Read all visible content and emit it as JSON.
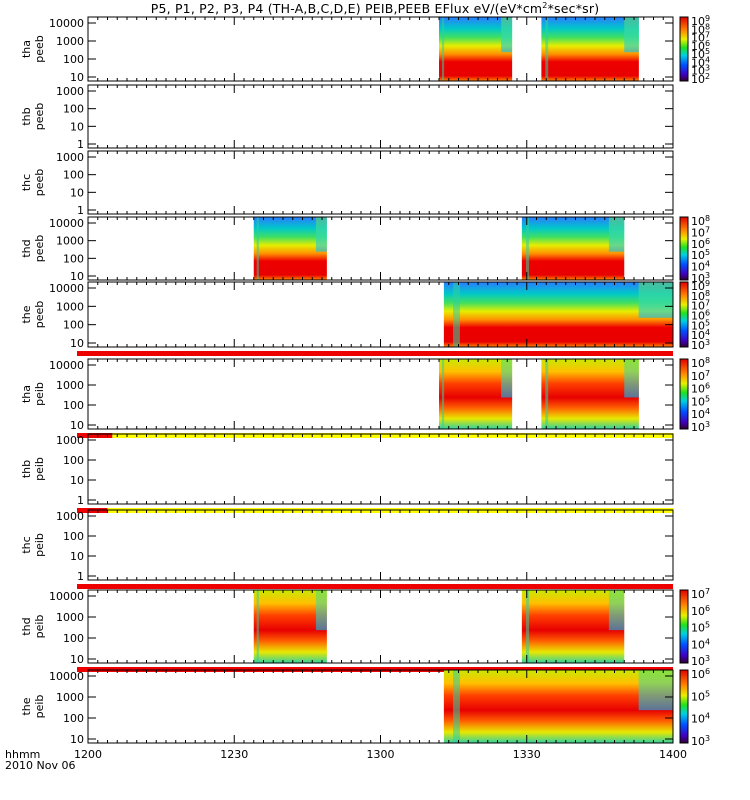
{
  "title": {
    "pre": "P5, P1, P2, P3, P4 (TH-A,B,C,D,E) PEIB,PEEB EFlux eV/(eV*cm",
    "sup": "2",
    "post": "*sec*sr)"
  },
  "xaxis": {
    "label": "hhmm",
    "date": "2010 Nov 06",
    "ticks": [
      "1200",
      "1230",
      "1300",
      "1330",
      "1400"
    ],
    "range_minutes": [
      0,
      120
    ]
  },
  "chart_data": [
    {
      "type": "heatmap",
      "label": [
        "tha",
        "peeb"
      ],
      "yticks": [
        "10000",
        "1000",
        "100",
        "10"
      ],
      "colorbar": [
        "10^9",
        "10^8",
        "10^7",
        "10^6",
        "10^5",
        "10^4",
        "10^3",
        "10^2"
      ],
      "intervals_min": [
        [
          72,
          87
        ],
        [
          93,
          113
        ]
      ],
      "status_bar": null
    },
    {
      "type": "heatmap",
      "label": [
        "thb",
        "peeb"
      ],
      "yticks": [
        "1000",
        "100",
        "10",
        "1"
      ],
      "colorbar": null,
      "intervals_min": [],
      "status_bar": null
    },
    {
      "type": "heatmap",
      "label": [
        "thc",
        "peeb"
      ],
      "yticks": [
        "1000",
        "100",
        "10",
        "1"
      ],
      "colorbar": null,
      "intervals_min": [],
      "status_bar": null
    },
    {
      "type": "heatmap",
      "label": [
        "thd",
        "peeb"
      ],
      "yticks": [
        "10000",
        "1000",
        "100",
        "10"
      ],
      "colorbar": [
        "10^8",
        "10^7",
        "10^6",
        "10^5",
        "10^4",
        "10^3"
      ],
      "intervals_min": [
        [
          34,
          49
        ],
        [
          89,
          110
        ]
      ],
      "status_bar": null
    },
    {
      "type": "heatmap",
      "label": [
        "the",
        "peeb"
      ],
      "yticks": [
        "10000",
        "1000",
        "100",
        "10"
      ],
      "colorbar": [
        "10^9",
        "10^8",
        "10^7",
        "10^6",
        "10^5",
        "10^4",
        "10^3"
      ],
      "intervals_min": [
        [
          73,
          120
        ]
      ],
      "status_bar": "red"
    },
    {
      "type": "heatmap",
      "label": [
        "tha",
        "peib"
      ],
      "yticks": [
        "10000",
        "1000",
        "100",
        "10"
      ],
      "colorbar": [
        "10^8",
        "10^7",
        "10^6",
        "10^5",
        "10^4",
        "10^3"
      ],
      "intervals_min": [
        [
          72,
          87
        ],
        [
          93,
          113
        ]
      ],
      "status_bar": "red-yellow-early"
    },
    {
      "type": "heatmap",
      "label": [
        "thb",
        "peib"
      ],
      "yticks": [
        "1000",
        "100",
        "10",
        "1"
      ],
      "colorbar": null,
      "intervals_min": [],
      "status_bar": "red-yellow-late"
    },
    {
      "type": "heatmap",
      "label": [
        "thc",
        "peib"
      ],
      "yticks": [
        "1000",
        "100",
        "10",
        "1"
      ],
      "colorbar": null,
      "intervals_min": [],
      "status_bar": "red"
    },
    {
      "type": "heatmap",
      "label": [
        "thd",
        "peib"
      ],
      "yticks": [
        "10000",
        "1000",
        "100",
        "10"
      ],
      "colorbar": [
        "10^7",
        "10^6",
        "10^5",
        "10^4",
        "10^3"
      ],
      "intervals_min": [
        [
          34,
          49
        ],
        [
          89,
          110
        ]
      ],
      "status_bar": "red"
    },
    {
      "type": "heatmap",
      "label": [
        "the",
        "peib"
      ],
      "yticks": [
        "10000",
        "1000",
        "100",
        "10"
      ],
      "colorbar": [
        "10^6",
        "10^5",
        "10^4",
        "10^3"
      ],
      "intervals_min": [
        [
          73,
          120
        ]
      ],
      "status_bar": null
    }
  ]
}
